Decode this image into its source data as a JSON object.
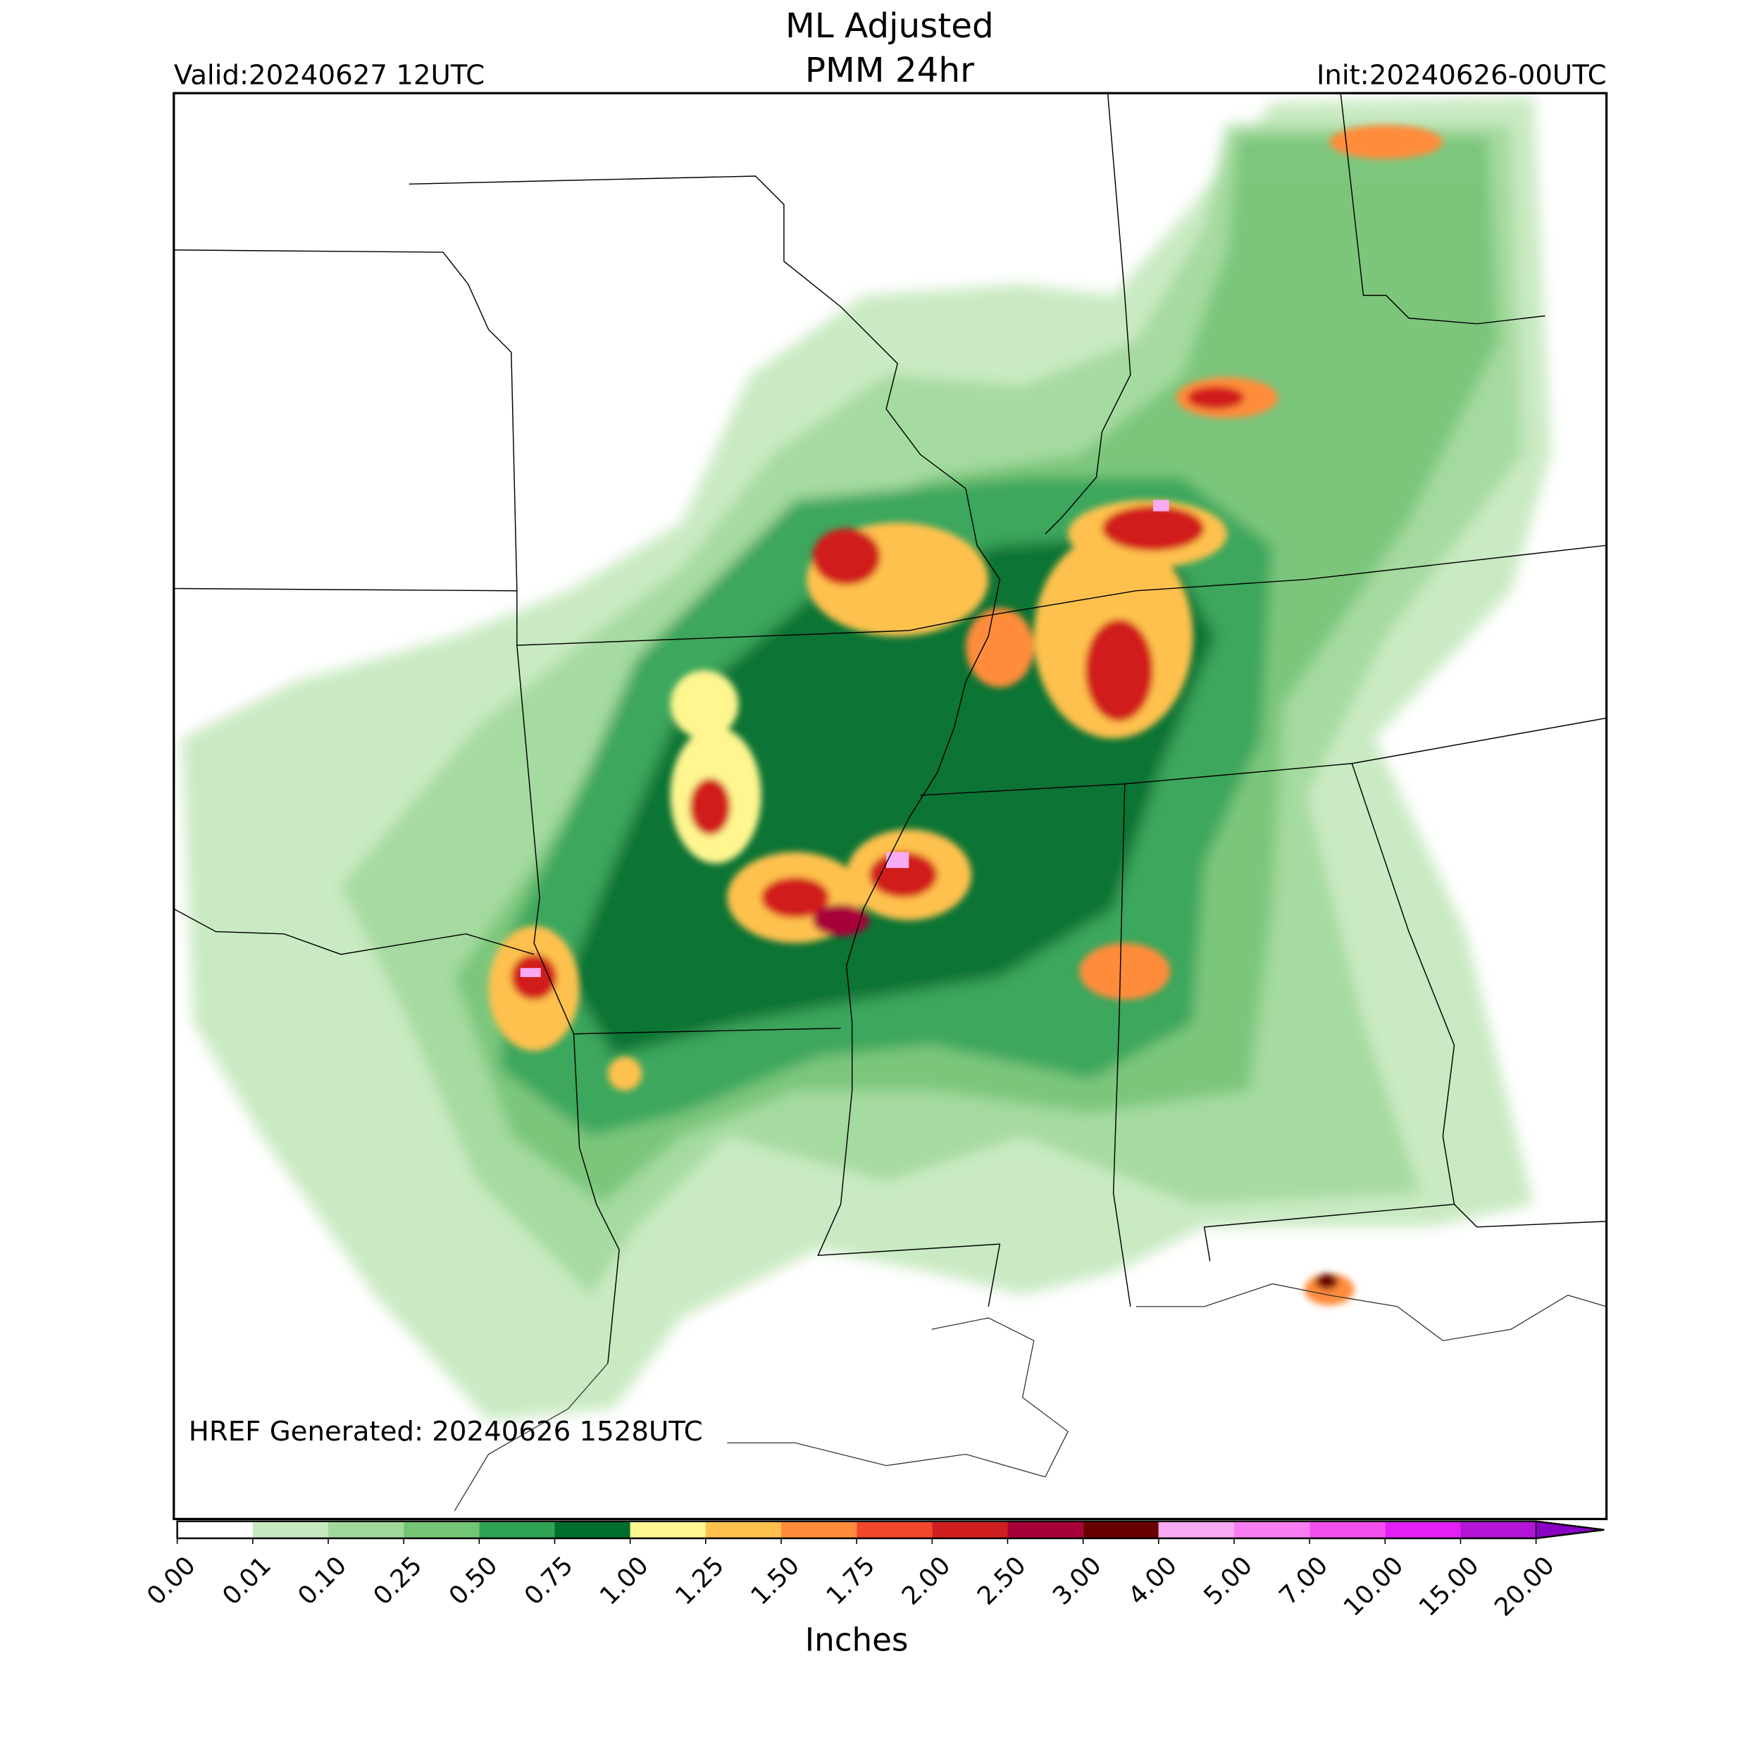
{
  "header": {
    "title_line1": "ML Adjusted",
    "title_line2": "PMM 24hr",
    "valid": "Valid:20240627 12UTC",
    "init": "Init:20240626-00UTC"
  },
  "footer_note": "HREF Generated: 20240626 1528UTC",
  "colorbar": {
    "label": "Inches",
    "tick_labels": [
      "0.00",
      "0.01",
      "0.10",
      "0.25",
      "0.50",
      "0.75",
      "1.00",
      "1.25",
      "1.50",
      "1.75",
      "2.00",
      "2.50",
      "3.00",
      "4.00",
      "5.00",
      "7.00",
      "10.00",
      "15.00",
      "20.00"
    ],
    "colors": [
      "#ffffff",
      "#c7e9c0",
      "#a1d99b",
      "#74c476",
      "#31a354",
      "#006d2c",
      "#fff68f",
      "#ffc14d",
      "#ff8c3a",
      "#f2472b",
      "#d11f1f",
      "#a8003a",
      "#6b0000",
      "#f8aaf2",
      "#f67ef0",
      "#f44ff0",
      "#e21ff5",
      "#b314d6"
    ],
    "extend_color": "#8a00c4"
  }
}
